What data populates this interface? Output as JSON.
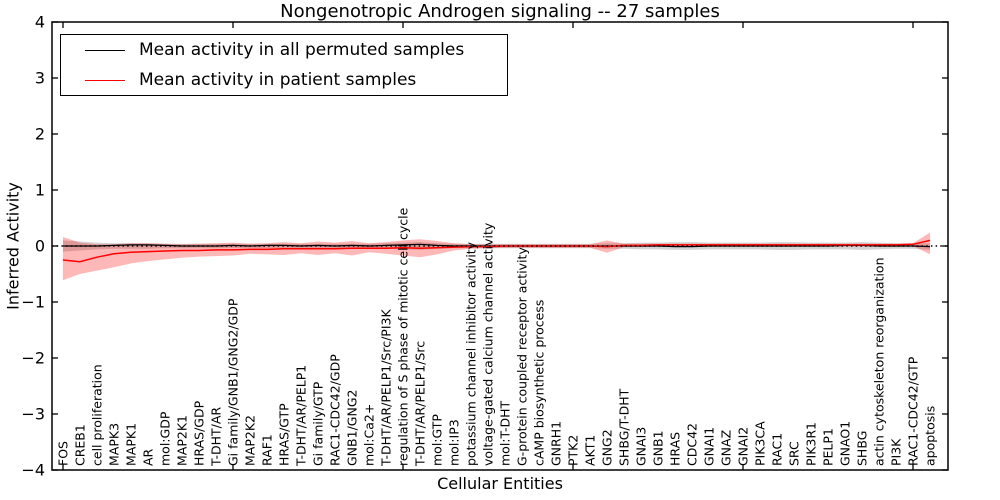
{
  "figure": {
    "title": "Nongenotropic Androgen signaling -- 27 samples",
    "xlabel": "Cellular Entities",
    "ylabel": "Inferred Activity",
    "legend": {
      "entries": [
        {
          "label": "Mean activity in all permuted samples",
          "color": "#000000"
        },
        {
          "label": "Mean activity in patient samples",
          "color": "#ff0000"
        }
      ]
    }
  },
  "chart_data": {
    "type": "line",
    "title": "Nongenotropic Androgen signaling -- 27 samples",
    "xlabel": "Cellular Entities",
    "ylabel": "Inferred Activity",
    "ylim": [
      -4,
      4
    ],
    "y_ticks": [
      4,
      3,
      2,
      1,
      0,
      -1,
      -2,
      -3,
      -4
    ],
    "x_major_tick_indices": [
      0,
      10,
      20,
      30,
      40,
      50
    ],
    "grid": false,
    "legend_position": "upper left",
    "zero_reference_line": {
      "y": 0,
      "style": "dotted",
      "color": "#000000"
    },
    "categories": [
      "FOS",
      "CREB1",
      "cell proliferation",
      "MAPK3",
      "MAPK1",
      "AR",
      "mol:GDP",
      "MAP2K1",
      "HRAS/GDP",
      "T-DHT/AR",
      "Gi family/GNB1/GNG2/GDP",
      "MAP2K2",
      "RAF1",
      "HRAS/GTP",
      "T-DHT/AR/PELP1",
      "Gi family/GTP",
      "RAC1-CDC42/GDP",
      "GNB1/GNG2",
      "mol:Ca2+",
      "T-DHT/AR/PELP1/Src/PI3K",
      "regulation of S phase of mitotic cell cycle",
      "T-DHT/AR/PELP1/Src",
      "mol:GTP",
      "mol:IP3",
      "potassium channel inhibitor activity",
      "voltage-gated calcium channel activity",
      "mol:T-DHT",
      "G-protein coupled receptor activity",
      "cAMP biosynthetic process",
      "GNRH1",
      "PTK2",
      "AKT1",
      "GNG2",
      "SHBG/T-DHT",
      "GNAI3",
      "GNB1",
      "HRAS",
      "CDC42",
      "GNAI1",
      "GNAZ",
      "GNAI2",
      "PIK3CA",
      "RAC1",
      "SRC",
      "PIK3R1",
      "PELP1",
      "GNAO1",
      "SHBG",
      "actin cytoskeleton reorganization",
      "PI3K",
      "RAC1-CDC42/GTP",
      "apoptosis"
    ],
    "series": [
      {
        "name": "Mean activity in all permuted samples",
        "color": "#000000",
        "band_color": "rgba(110,110,110,0.30)",
        "values": [
          0,
          0,
          0,
          0.01,
          0.02,
          0.02,
          0.01,
          0,
          0,
          0,
          0.01,
          0,
          0.01,
          0.01,
          0,
          0.01,
          0,
          0.01,
          0,
          0.01,
          0.02,
          0.03,
          0.01,
          0,
          0,
          0,
          0,
          0,
          0,
          0,
          0,
          0,
          0,
          0,
          0,
          0,
          -0.01,
          -0.01,
          0,
          0,
          0,
          0,
          0,
          0,
          0,
          0,
          0.01,
          0.01,
          0,
          0,
          0,
          -0.01
        ],
        "band_upper": [
          0.1,
          0.08,
          0.06,
          0.05,
          0.05,
          0.05,
          0.04,
          0.04,
          0.04,
          0.04,
          0.04,
          0.04,
          0.04,
          0.04,
          0.04,
          0.04,
          0.04,
          0.04,
          0.04,
          0.05,
          0.06,
          0.07,
          0.05,
          0.04,
          0.04,
          0.04,
          0.04,
          0.04,
          0.04,
          0.04,
          0.04,
          0.04,
          0.05,
          0.05,
          0.06,
          0.06,
          0.07,
          0.07,
          0.06,
          0.06,
          0.06,
          0.06,
          0.07,
          0.07,
          0.06,
          0.06,
          0.06,
          0.07,
          0.06,
          0.05,
          0.05,
          0.05
        ],
        "band_lower": [
          -0.1,
          -0.08,
          -0.06,
          -0.05,
          -0.05,
          -0.05,
          -0.04,
          -0.04,
          -0.04,
          -0.04,
          -0.04,
          -0.04,
          -0.04,
          -0.04,
          -0.04,
          -0.04,
          -0.04,
          -0.04,
          -0.04,
          -0.05,
          -0.06,
          -0.07,
          -0.05,
          -0.04,
          -0.04,
          -0.04,
          -0.04,
          -0.04,
          -0.04,
          -0.04,
          -0.04,
          -0.04,
          -0.05,
          -0.05,
          -0.06,
          -0.06,
          -0.07,
          -0.07,
          -0.06,
          -0.06,
          -0.06,
          -0.06,
          -0.07,
          -0.07,
          -0.06,
          -0.06,
          -0.06,
          -0.07,
          -0.06,
          -0.05,
          -0.05,
          -0.07
        ]
      },
      {
        "name": "Mean activity in patient samples",
        "color": "#ff0000",
        "band_color": "rgba(255,0,0,0.28)",
        "values": [
          -0.25,
          -0.28,
          -0.2,
          -0.14,
          -0.11,
          -0.1,
          -0.09,
          -0.08,
          -0.08,
          -0.07,
          -0.07,
          -0.06,
          -0.06,
          -0.05,
          -0.05,
          -0.05,
          -0.05,
          -0.04,
          -0.04,
          -0.04,
          -0.03,
          -0.04,
          -0.03,
          -0.02,
          -0.01,
          -0.01,
          0,
          0,
          0,
          0,
          0,
          0,
          -0.01,
          0.01,
          0.01,
          0.02,
          0.02,
          0.02,
          0.02,
          0.02,
          0.02,
          0.02,
          0.02,
          0.02,
          0.02,
          0.02,
          0.02,
          0.02,
          0.02,
          0.02,
          0.03,
          0.1
        ],
        "band_upper": [
          0.16,
          0.06,
          0.03,
          0.03,
          0.05,
          0.05,
          0.04,
          0.03,
          0.04,
          0.05,
          0.06,
          0.04,
          0.05,
          0.07,
          0.05,
          0.08,
          0.06,
          0.09,
          0.05,
          0.07,
          0.1,
          0.12,
          0.09,
          0.05,
          0.03,
          0.03,
          0.03,
          0.03,
          0.03,
          0.03,
          0.03,
          0.03,
          0.1,
          0.04,
          0.04,
          0.04,
          0.04,
          0.04,
          0.04,
          0.04,
          0.04,
          0.04,
          0.04,
          0.04,
          0.04,
          0.04,
          0.04,
          0.04,
          0.04,
          0.04,
          0.05,
          0.24
        ],
        "band_lower": [
          -0.61,
          -0.5,
          -0.44,
          -0.38,
          -0.31,
          -0.27,
          -0.24,
          -0.21,
          -0.19,
          -0.18,
          -0.17,
          -0.14,
          -0.15,
          -0.16,
          -0.13,
          -0.16,
          -0.13,
          -0.17,
          -0.11,
          -0.14,
          -0.17,
          -0.2,
          -0.15,
          -0.08,
          -0.05,
          -0.04,
          -0.03,
          -0.03,
          -0.03,
          -0.03,
          -0.03,
          -0.03,
          -0.12,
          -0.02,
          -0.02,
          -0.01,
          -0.01,
          -0.01,
          -0.01,
          -0.01,
          -0.01,
          -0.01,
          -0.01,
          -0.01,
          -0.01,
          -0.01,
          -0.01,
          -0.01,
          -0.01,
          -0.01,
          0,
          -0.15
        ]
      }
    ]
  }
}
